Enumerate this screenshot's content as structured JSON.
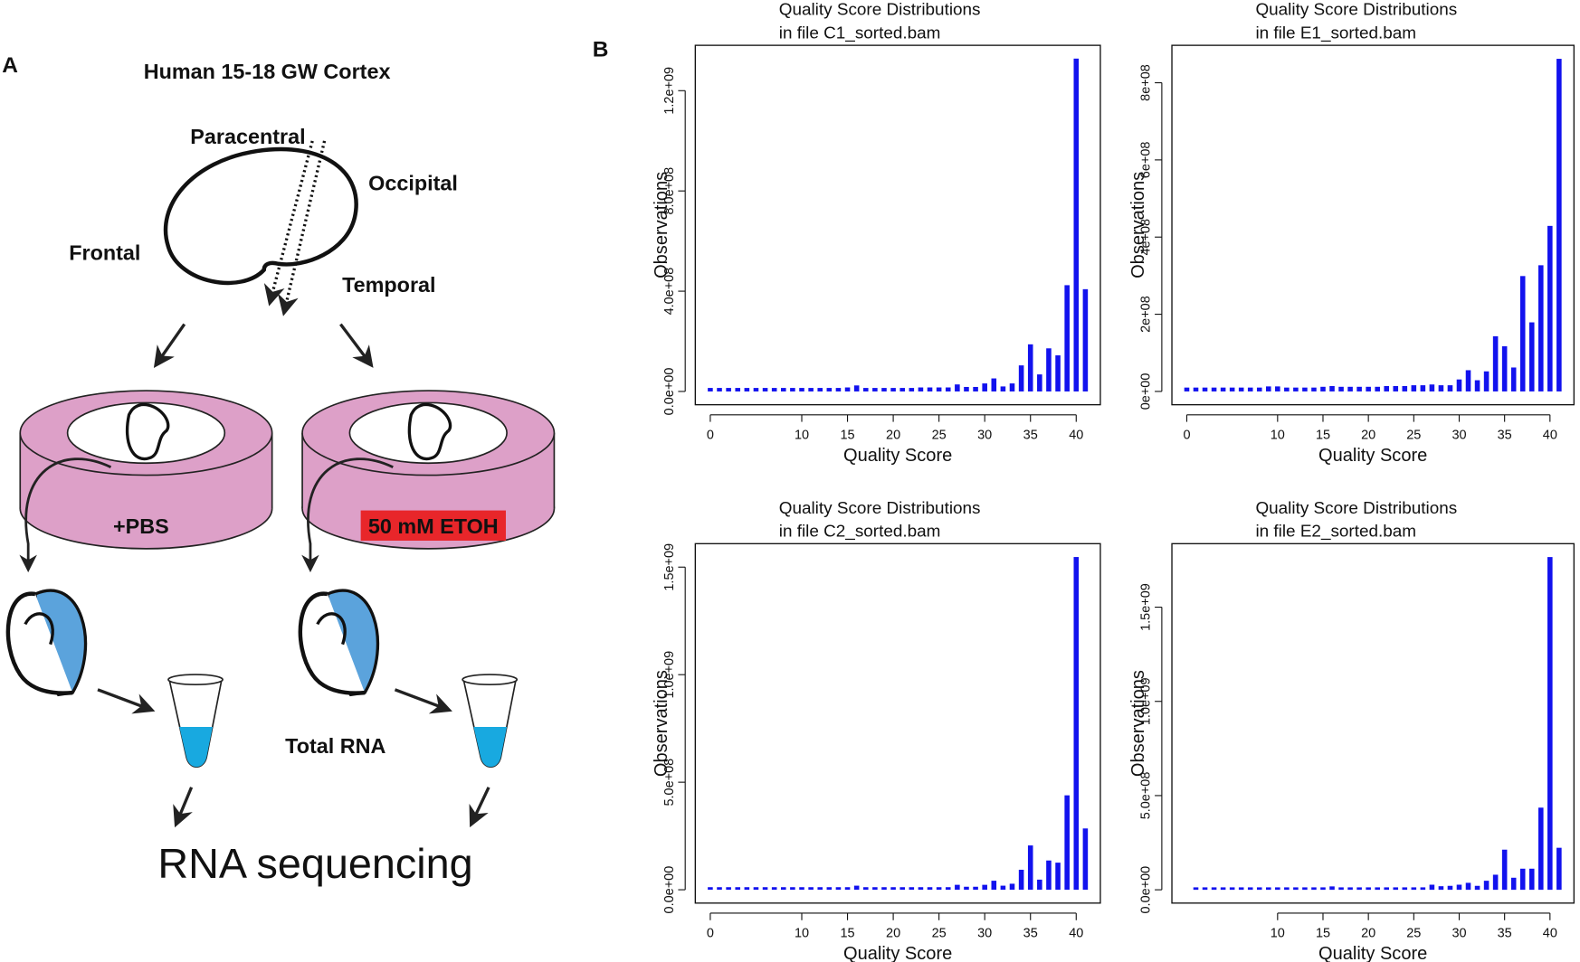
{
  "diagram": {
    "panel_a": "A",
    "panel_b": "B",
    "title": "Human 15-18 GW Cortex",
    "regions": [
      "Paracentral",
      "Occipital",
      "Frontal",
      "Temporal"
    ],
    "treatments": [
      "+PBS",
      "50 mM ETOH"
    ],
    "extract": "Total RNA",
    "output": "RNA sequencing"
  },
  "chart_data": [
    {
      "type": "bar",
      "title": "Quality Score Distributions",
      "subtitle": "in file C1_sorted.bam",
      "x_label": "Quality Score",
      "y_label": "Observations",
      "color": "#1212ee",
      "x": [
        0,
        1,
        2,
        3,
        4,
        5,
        6,
        7,
        8,
        9,
        10,
        11,
        12,
        13,
        14,
        15,
        16,
        17,
        18,
        19,
        20,
        21,
        22,
        23,
        24,
        25,
        26,
        27,
        28,
        29,
        30,
        31,
        32,
        33,
        34,
        35,
        36,
        37,
        38,
        39,
        40,
        41
      ],
      "values": [
        14000000.0,
        14000000.0,
        14000000.0,
        14000000.0,
        14000000.0,
        14000000.0,
        14000000.0,
        14000000.0,
        14000000.0,
        14000000.0,
        14000000.0,
        14000000.0,
        14000000.0,
        14000000.0,
        14000000.0,
        16000000.0,
        24000000.0,
        14000000.0,
        14000000.0,
        14000000.0,
        14000000.0,
        14000000.0,
        14000000.0,
        16000000.0,
        16000000.0,
        16000000.0,
        16000000.0,
        28000000.0,
        18000000.0,
        18000000.0,
        32000000.0,
        52000000.0,
        20000000.0,
        32000000.0,
        104000000.0,
        188000000.0,
        68000000.0,
        172000000.0,
        144000000.0,
        424000000.0,
        1328000000.0,
        408000000.0
      ],
      "xlim": [
        -1.64,
        42.64
      ],
      "xticks": [
        0,
        10,
        15,
        20,
        25,
        30,
        35,
        40
      ],
      "ylim": [
        -53000000.0,
        1381000000.0
      ],
      "yticks": [
        {
          "value": 0,
          "label": "0.0e+00"
        },
        {
          "value": 400000000.0,
          "label": "4.0e+08"
        },
        {
          "value": 800000000.0,
          "label": "8.0e+08"
        },
        {
          "value": 1200000000.0,
          "label": "1.2e+09"
        }
      ]
    },
    {
      "type": "bar",
      "title": "Quality Score Distributions",
      "subtitle": "in file E1_sorted.bam",
      "x_label": "Quality Score",
      "y_label": "Observations",
      "color": "#1212ee",
      "x": [
        0,
        1,
        2,
        3,
        4,
        5,
        6,
        7,
        8,
        9,
        10,
        11,
        12,
        13,
        14,
        15,
        16,
        17,
        18,
        19,
        20,
        21,
        22,
        23,
        24,
        25,
        26,
        27,
        28,
        29,
        30,
        31,
        32,
        33,
        34,
        35,
        36,
        37,
        38,
        39,
        40,
        41
      ],
      "values": [
        10000000.0,
        10000000.0,
        10000000.0,
        10000000.0,
        10000000.0,
        10000000.0,
        10000000.0,
        10000000.0,
        10000000.0,
        13000000.0,
        13000000.0,
        10000000.0,
        10000000.0,
        10000000.0,
        10000000.0,
        12000000.0,
        14000000.0,
        12000000.0,
        12000000.0,
        12000000.0,
        12000000.0,
        12000000.0,
        14000000.0,
        14000000.0,
        14000000.0,
        16000000.0,
        16000000.0,
        18000000.0,
        16000000.0,
        16000000.0,
        31000000.0,
        55000000.0,
        29000000.0,
        52000000.0,
        143000000.0,
        117000000.0,
        62000000.0,
        299000000.0,
        179000000.0,
        327000000.0,
        429000000.0,
        862000000.0
      ],
      "xlim": [
        -1.64,
        42.64
      ],
      "xticks": [
        0,
        10,
        15,
        20,
        25,
        30,
        35,
        40
      ],
      "ylim": [
        -34500000.0,
        897000000.0
      ],
      "yticks": [
        {
          "value": 0,
          "label": "0e+00"
        },
        {
          "value": 200000000.0,
          "label": "2e+08"
        },
        {
          "value": 400000000.0,
          "label": "4e+08"
        },
        {
          "value": 600000000.0,
          "label": "6e+08"
        },
        {
          "value": 800000000.0,
          "label": "8e+08"
        }
      ]
    },
    {
      "type": "bar",
      "title": "Quality Score Distributions",
      "subtitle": "in file C2_sorted.bam",
      "x_label": "Quality Score",
      "y_label": "Observations",
      "color": "#1212ee",
      "x": [
        0,
        1,
        2,
        3,
        4,
        5,
        6,
        7,
        8,
        9,
        10,
        11,
        12,
        13,
        14,
        15,
        16,
        17,
        18,
        19,
        20,
        21,
        22,
        23,
        24,
        25,
        26,
        27,
        28,
        29,
        30,
        31,
        32,
        33,
        34,
        35,
        36,
        37,
        38,
        39,
        40,
        41
      ],
      "values": [
        12000000.0,
        12000000.0,
        12000000.0,
        12000000.0,
        12000000.0,
        12000000.0,
        12000000.0,
        12000000.0,
        12000000.0,
        12000000.0,
        12000000.0,
        12000000.0,
        12000000.0,
        12000000.0,
        12000000.0,
        12000000.0,
        19000000.0,
        12000000.0,
        12000000.0,
        12000000.0,
        12000000.0,
        12000000.0,
        12000000.0,
        12000000.0,
        12000000.0,
        12000000.0,
        12000000.0,
        23000000.0,
        14000000.0,
        14000000.0,
        23000000.0,
        42000000.0,
        19000000.0,
        28000000.0,
        93000000.0,
        206000000.0,
        47000000.0,
        136000000.0,
        126000000.0,
        439000000.0,
        1547000000.0,
        285000000.0
      ],
      "xlim": [
        -1.64,
        42.64
      ],
      "xticks": [
        0,
        10,
        15,
        20,
        25,
        30,
        35,
        40
      ],
      "ylim": [
        -62000000.0,
        1609000000.0
      ],
      "yticks": [
        {
          "value": 0,
          "label": "0.0e+00"
        },
        {
          "value": 500000000.0,
          "label": "5.0e+08"
        },
        {
          "value": 1000000000.0,
          "label": "1.0e+09"
        },
        {
          "value": 1500000000.0,
          "label": "1.5e+09"
        }
      ]
    },
    {
      "type": "bar",
      "title": "Quality Score Distributions",
      "subtitle": "in file E2_sorted.bam",
      "x_label": "Quality Score",
      "y_label": "Observations",
      "color": "#1212ee",
      "x": [
        1,
        2,
        3,
        4,
        5,
        6,
        7,
        8,
        9,
        10,
        11,
        12,
        13,
        14,
        15,
        16,
        17,
        18,
        19,
        20,
        21,
        22,
        23,
        24,
        25,
        26,
        27,
        28,
        29,
        30,
        31,
        32,
        33,
        34,
        35,
        36,
        37,
        38,
        39,
        40,
        41
      ],
      "values": [
        13000000.0,
        13000000.0,
        13000000.0,
        13000000.0,
        13000000.0,
        13000000.0,
        13000000.0,
        13000000.0,
        13000000.0,
        13000000.0,
        13000000.0,
        13000000.0,
        13000000.0,
        13000000.0,
        13000000.0,
        18000000.0,
        13000000.0,
        13000000.0,
        13000000.0,
        13000000.0,
        13000000.0,
        13000000.0,
        13000000.0,
        13000000.0,
        13000000.0,
        13000000.0,
        27000000.0,
        19000000.0,
        21000000.0,
        27000000.0,
        37000000.0,
        21000000.0,
        48000000.0,
        80000000.0,
        213000000.0,
        64000000.0,
        112000000.0,
        112000000.0,
        436000000.0,
        1766000000.0,
        223000000.0
      ],
      "xlim": [
        -1.64,
        42.64
      ],
      "xticks": [
        10,
        15,
        20,
        25,
        30,
        35,
        40
      ],
      "ylim": [
        -70600000.0,
        1837000000.0
      ],
      "yticks": [
        {
          "value": 0,
          "label": "0.0e+00"
        },
        {
          "value": 500000000.0,
          "label": "5.0e+08"
        },
        {
          "value": 1000000000.0,
          "label": "1.0e+09"
        },
        {
          "value": 1500000000.0,
          "label": "1.5e+09"
        }
      ]
    }
  ]
}
